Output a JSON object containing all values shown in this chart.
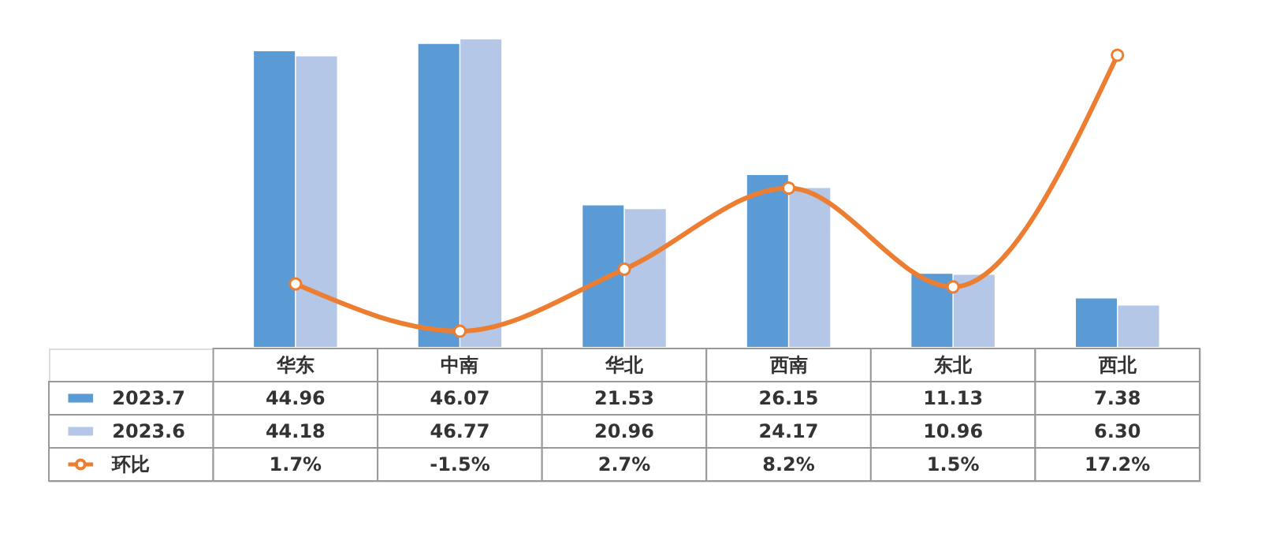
{
  "chart_data": {
    "type": "bar",
    "categories": [
      "华东",
      "中南",
      "华北",
      "西南",
      "东北",
      "西北"
    ],
    "series": [
      {
        "name": "2023.7",
        "color": "#5b9bd5",
        "values": [
          44.96,
          46.07,
          21.53,
          26.15,
          11.13,
          7.38
        ],
        "value_labels": [
          "44.96",
          "46.07",
          "21.53",
          "26.15",
          "11.13",
          "7.38"
        ]
      },
      {
        "name": "2023.6",
        "color": "#b4c7e7",
        "values": [
          44.18,
          46.77,
          20.96,
          24.17,
          10.96,
          6.3
        ],
        "value_labels": [
          "44.18",
          "46.77",
          "20.96",
          "24.17",
          "10.96",
          "6.30"
        ]
      },
      {
        "name": "环比",
        "type": "line",
        "axis": "y2",
        "color": "#ed7d31",
        "marker": "circle",
        "values": [
          1.7,
          -1.5,
          2.7,
          8.2,
          1.5,
          17.2
        ],
        "value_labels": [
          "1.7%",
          "-1.5%",
          "2.7%",
          "8.2%",
          "1.5%",
          "17.2%"
        ]
      }
    ],
    "legend": "bottom"
  }
}
